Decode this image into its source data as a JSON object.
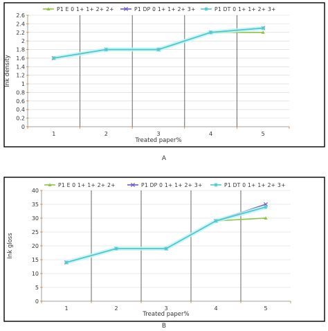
{
  "colors": {
    "frame": "#000000",
    "grid_vertical": "#555555",
    "grid_horizontal": "#d6d6d6",
    "axis_tick_label": "#d07a1e",
    "shadow": "#bff2f2"
  },
  "chart_data": [
    {
      "type": "line",
      "panel_caption": "A",
      "xlabel": "Treated paper%",
      "ylabel": "Ink density",
      "categories": [
        "1",
        "2",
        "3",
        "4",
        "5"
      ],
      "ylim": [
        0,
        2.6
      ],
      "yticks": [
        0,
        0.2,
        0.4,
        0.6,
        0.8,
        1,
        1.2,
        1.4,
        1.6,
        1.8,
        2,
        2.2,
        2.4,
        2.6
      ],
      "ytick_labels": [
        "0",
        "0.2",
        "0.4",
        "0.6",
        "0.8",
        "1",
        "1.2",
        "1.4",
        "1.6",
        "1.8",
        "2",
        "2.2",
        "2.4",
        "2.6"
      ],
      "grid": true,
      "legend_position": "top",
      "series": [
        {
          "name": "P1 E 0 1+ 1+ 2+ 2+",
          "color": "#8cc63e",
          "marker": "triangle",
          "values": [
            1.6,
            1.8,
            1.8,
            2.2,
            2.2
          ]
        },
        {
          "name": "P1 DP 0 1+ 1+ 2+ 3+",
          "color": "#6a5acd",
          "marker": "x",
          "values": [
            1.6,
            1.8,
            1.8,
            2.2,
            2.3
          ]
        },
        {
          "name": "P1 DT 0 1+ 1+ 2+ 3+",
          "color": "#4fc9cc",
          "marker": "star",
          "values": [
            1.6,
            1.8,
            1.8,
            2.2,
            2.3
          ]
        }
      ]
    },
    {
      "type": "line",
      "panel_caption": "B",
      "xlabel": "Treated paper%",
      "ylabel": "Ink gloss",
      "categories": [
        "1",
        "2",
        "3",
        "4",
        "5"
      ],
      "ylim": [
        0,
        40
      ],
      "yticks": [
        0,
        5,
        10,
        15,
        20,
        25,
        30,
        35,
        40
      ],
      "ytick_labels": [
        "0",
        "5",
        "10",
        "15",
        "20",
        "25",
        "30",
        "35",
        "40"
      ],
      "grid": true,
      "legend_position": "top",
      "series": [
        {
          "name": "P1 E 0 1+ 1+ 2+ 2+",
          "color": "#8cc63e",
          "marker": "triangle",
          "values": [
            14,
            19,
            19,
            29,
            30
          ]
        },
        {
          "name": "P1 DP 0 1+ 1+ 2+ 3+",
          "color": "#6a5acd",
          "marker": "x",
          "values": [
            14,
            19,
            19,
            29,
            35
          ]
        },
        {
          "name": "P1 DT 0 1+ 1+ 2+ 3+",
          "color": "#4fc9cc",
          "marker": "star",
          "values": [
            14,
            19,
            19,
            29,
            34
          ]
        }
      ]
    }
  ]
}
